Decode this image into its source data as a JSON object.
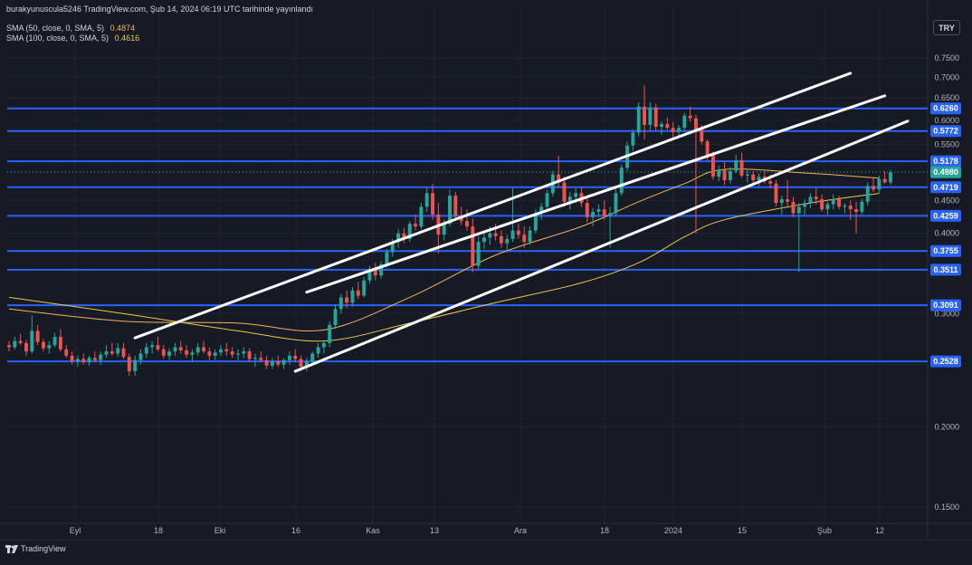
{
  "header": {
    "published_by": "burakyunuscula5246 TradingView.com, Şub 14, 2024 06:19 UTC tarihinde yayınlandı",
    "sma50_label": "SMA (50, close, 0, SMA, 5)",
    "sma50_value": "0.4874",
    "sma100_label": "SMA (100, close, 0, SMA, 5)",
    "sma100_value": "0.4616"
  },
  "currency_button": "TRY",
  "brand": {
    "logo_text": "TradingView",
    "icon": "tradingview-logo-icon"
  },
  "colors": {
    "background": "#161a25",
    "grid": "#1f2430",
    "up": "#26a69a",
    "down": "#ef5350",
    "hline": "#2962ff",
    "trendline": "#ffffff",
    "sma50": "#f0b35a",
    "sma100": "#e8c94a",
    "axis_text": "#b2b5be"
  },
  "chart_data": {
    "type": "candlestick",
    "y_scale": "log",
    "y_ticks": [
      "0.7500",
      "0.7000",
      "0.6500",
      "0.6000",
      "0.5500",
      "0.5000",
      "0.4500",
      "0.4000",
      "0.3500",
      "0.3000",
      "0.2500",
      "0.2000",
      "0.1500"
    ],
    "x_ticks": [
      "Eyl",
      "18",
      "Eki",
      "16",
      "Kas",
      "13",
      "Ara",
      "18",
      "2024",
      "15",
      "Şub",
      "12"
    ],
    "horizontal_levels": [
      "0.6260",
      "0.5772",
      "0.5178",
      "0.4719",
      "0.4259",
      "0.3755",
      "0.3511",
      "0.3091",
      "0.2528"
    ],
    "last_price": "0.4980",
    "candles": [
      [
        0.268,
        0.272,
        0.262,
        0.266
      ],
      [
        0.266,
        0.276,
        0.264,
        0.272
      ],
      [
        0.272,
        0.279,
        0.268,
        0.27
      ],
      [
        0.27,
        0.273,
        0.258,
        0.262
      ],
      [
        0.262,
        0.298,
        0.26,
        0.282
      ],
      [
        0.282,
        0.288,
        0.268,
        0.271
      ],
      [
        0.271,
        0.274,
        0.262,
        0.265
      ],
      [
        0.265,
        0.272,
        0.26,
        0.268
      ],
      [
        0.268,
        0.28,
        0.266,
        0.276
      ],
      [
        0.276,
        0.284,
        0.262,
        0.264
      ],
      [
        0.264,
        0.268,
        0.256,
        0.258
      ],
      [
        0.258,
        0.262,
        0.25,
        0.253
      ],
      [
        0.253,
        0.258,
        0.248,
        0.255
      ],
      [
        0.255,
        0.26,
        0.25,
        0.252
      ],
      [
        0.252,
        0.258,
        0.249,
        0.256
      ],
      [
        0.256,
        0.262,
        0.252,
        0.254
      ],
      [
        0.254,
        0.262,
        0.25,
        0.259
      ],
      [
        0.259,
        0.268,
        0.256,
        0.262
      ],
      [
        0.262,
        0.27,
        0.258,
        0.26
      ],
      [
        0.26,
        0.27,
        0.257,
        0.265
      ],
      [
        0.265,
        0.27,
        0.255,
        0.257
      ],
      [
        0.257,
        0.26,
        0.24,
        0.244
      ],
      [
        0.244,
        0.258,
        0.24,
        0.254
      ],
      [
        0.254,
        0.264,
        0.25,
        0.26
      ],
      [
        0.26,
        0.27,
        0.256,
        0.266
      ],
      [
        0.266,
        0.272,
        0.26,
        0.268
      ],
      [
        0.268,
        0.276,
        0.262,
        0.264
      ],
      [
        0.264,
        0.268,
        0.255,
        0.258
      ],
      [
        0.258,
        0.265,
        0.254,
        0.262
      ],
      [
        0.262,
        0.27,
        0.258,
        0.266
      ],
      [
        0.266,
        0.272,
        0.26,
        0.263
      ],
      [
        0.263,
        0.268,
        0.256,
        0.259
      ],
      [
        0.259,
        0.264,
        0.252,
        0.261
      ],
      [
        0.261,
        0.27,
        0.258,
        0.266
      ],
      [
        0.266,
        0.272,
        0.26,
        0.262
      ],
      [
        0.262,
        0.266,
        0.254,
        0.258
      ],
      [
        0.258,
        0.264,
        0.254,
        0.261
      ],
      [
        0.261,
        0.268,
        0.258,
        0.264
      ],
      [
        0.264,
        0.27,
        0.258,
        0.262
      ],
      [
        0.262,
        0.266,
        0.256,
        0.259
      ],
      [
        0.259,
        0.264,
        0.254,
        0.26
      ],
      [
        0.26,
        0.266,
        0.256,
        0.262
      ],
      [
        0.262,
        0.265,
        0.252,
        0.255
      ],
      [
        0.255,
        0.26,
        0.248,
        0.256
      ],
      [
        0.256,
        0.262,
        0.252,
        0.254
      ],
      [
        0.254,
        0.258,
        0.246,
        0.249
      ],
      [
        0.249,
        0.256,
        0.246,
        0.253
      ],
      [
        0.253,
        0.258,
        0.248,
        0.25
      ],
      [
        0.25,
        0.256,
        0.246,
        0.254
      ],
      [
        0.254,
        0.262,
        0.25,
        0.258
      ],
      [
        0.258,
        0.264,
        0.252,
        0.255
      ],
      [
        0.255,
        0.258,
        0.244,
        0.248
      ],
      [
        0.248,
        0.256,
        0.244,
        0.253
      ],
      [
        0.253,
        0.262,
        0.25,
        0.26
      ],
      [
        0.26,
        0.27,
        0.256,
        0.266
      ],
      [
        0.266,
        0.272,
        0.26,
        0.27
      ],
      [
        0.27,
        0.292,
        0.266,
        0.288
      ],
      [
        0.288,
        0.31,
        0.284,
        0.305
      ],
      [
        0.305,
        0.322,
        0.3,
        0.318
      ],
      [
        0.318,
        0.326,
        0.306,
        0.312
      ],
      [
        0.312,
        0.33,
        0.308,
        0.326
      ],
      [
        0.326,
        0.336,
        0.316,
        0.32
      ],
      [
        0.32,
        0.342,
        0.318,
        0.338
      ],
      [
        0.338,
        0.356,
        0.334,
        0.352
      ],
      [
        0.352,
        0.36,
        0.338,
        0.344
      ],
      [
        0.344,
        0.362,
        0.34,
        0.358
      ],
      [
        0.358,
        0.378,
        0.354,
        0.374
      ],
      [
        0.374,
        0.392,
        0.368,
        0.388
      ],
      [
        0.388,
        0.406,
        0.38,
        0.4
      ],
      [
        0.4,
        0.408,
        0.386,
        0.392
      ],
      [
        0.392,
        0.418,
        0.388,
        0.414
      ],
      [
        0.414,
        0.428,
        0.404,
        0.41
      ],
      [
        0.41,
        0.446,
        0.406,
        0.44
      ],
      [
        0.44,
        0.47,
        0.432,
        0.462
      ],
      [
        0.462,
        0.478,
        0.42,
        0.428
      ],
      [
        0.428,
        0.446,
        0.372,
        0.398
      ],
      [
        0.398,
        0.42,
        0.39,
        0.414
      ],
      [
        0.414,
        0.468,
        0.41,
        0.458
      ],
      [
        0.458,
        0.464,
        0.42,
        0.426
      ],
      [
        0.426,
        0.44,
        0.412,
        0.418
      ],
      [
        0.418,
        0.436,
        0.404,
        0.41
      ],
      [
        0.41,
        0.422,
        0.348,
        0.356
      ],
      [
        0.356,
        0.396,
        0.352,
        0.388
      ],
      [
        0.388,
        0.402,
        0.378,
        0.394
      ],
      [
        0.394,
        0.41,
        0.384,
        0.4
      ],
      [
        0.4,
        0.414,
        0.39,
        0.396
      ],
      [
        0.396,
        0.404,
        0.38,
        0.386
      ],
      [
        0.386,
        0.398,
        0.374,
        0.392
      ],
      [
        0.392,
        0.47,
        0.388,
        0.404
      ],
      [
        0.404,
        0.414,
        0.392,
        0.398
      ],
      [
        0.398,
        0.41,
        0.38,
        0.388
      ],
      [
        0.388,
        0.41,
        0.384,
        0.404
      ],
      [
        0.404,
        0.436,
        0.4,
        0.43
      ],
      [
        0.43,
        0.446,
        0.42,
        0.44
      ],
      [
        0.44,
        0.468,
        0.436,
        0.462
      ],
      [
        0.462,
        0.5,
        0.456,
        0.494
      ],
      [
        0.494,
        0.528,
        0.472,
        0.48
      ],
      [
        0.48,
        0.49,
        0.44,
        0.448
      ],
      [
        0.448,
        0.464,
        0.436,
        0.456
      ],
      [
        0.456,
        0.47,
        0.446,
        0.462
      ],
      [
        0.462,
        0.472,
        0.44,
        0.446
      ],
      [
        0.446,
        0.454,
        0.416,
        0.424
      ],
      [
        0.424,
        0.438,
        0.41,
        0.432
      ],
      [
        0.432,
        0.444,
        0.424,
        0.436
      ],
      [
        0.436,
        0.45,
        0.42,
        0.426
      ],
      [
        0.426,
        0.44,
        0.38,
        0.43
      ],
      [
        0.43,
        0.47,
        0.426,
        0.462
      ],
      [
        0.462,
        0.512,
        0.458,
        0.506
      ],
      [
        0.506,
        0.556,
        0.5,
        0.548
      ],
      [
        0.548,
        0.58,
        0.538,
        0.574
      ],
      [
        0.574,
        0.64,
        0.566,
        0.63
      ],
      [
        0.63,
        0.68,
        0.56,
        0.59
      ],
      [
        0.59,
        0.64,
        0.576,
        0.628
      ],
      [
        0.628,
        0.636,
        0.578,
        0.586
      ],
      [
        0.586,
        0.598,
        0.57,
        0.592
      ],
      [
        0.592,
        0.606,
        0.58,
        0.584
      ],
      [
        0.584,
        0.596,
        0.56,
        0.575
      ],
      [
        0.575,
        0.59,
        0.568,
        0.584
      ],
      [
        0.584,
        0.616,
        0.578,
        0.61
      ],
      [
        0.61,
        0.63,
        0.596,
        0.604
      ],
      [
        0.604,
        0.612,
        0.4,
        0.58
      ],
      [
        0.58,
        0.59,
        0.55,
        0.556
      ],
      [
        0.556,
        0.56,
        0.52,
        0.53
      ],
      [
        0.53,
        0.536,
        0.484,
        0.49
      ],
      [
        0.49,
        0.51,
        0.482,
        0.502
      ],
      [
        0.502,
        0.516,
        0.476,
        0.484
      ],
      [
        0.484,
        0.508,
        0.478,
        0.5
      ],
      [
        0.5,
        0.53,
        0.496,
        0.52
      ],
      [
        0.52,
        0.534,
        0.488,
        0.492
      ],
      [
        0.492,
        0.504,
        0.48,
        0.494
      ],
      [
        0.494,
        0.5,
        0.478,
        0.484
      ],
      [
        0.484,
        0.496,
        0.474,
        0.49
      ],
      [
        0.49,
        0.5,
        0.478,
        0.482
      ],
      [
        0.482,
        0.494,
        0.47,
        0.478
      ],
      [
        0.478,
        0.484,
        0.44,
        0.446
      ],
      [
        0.446,
        0.458,
        0.428,
        0.452
      ],
      [
        0.452,
        0.484,
        0.44,
        0.448
      ],
      [
        0.448,
        0.456,
        0.424,
        0.43
      ],
      [
        0.43,
        0.446,
        0.348,
        0.44
      ],
      [
        0.44,
        0.452,
        0.428,
        0.446
      ],
      [
        0.446,
        0.462,
        0.438,
        0.456
      ],
      [
        0.456,
        0.47,
        0.444,
        0.452
      ],
      [
        0.452,
        0.46,
        0.432,
        0.436
      ],
      [
        0.436,
        0.448,
        0.428,
        0.444
      ],
      [
        0.444,
        0.46,
        0.436,
        0.452
      ],
      [
        0.452,
        0.458,
        0.436,
        0.44
      ],
      [
        0.44,
        0.446,
        0.43,
        0.442
      ],
      [
        0.442,
        0.45,
        0.42,
        0.436
      ],
      [
        0.436,
        0.448,
        0.4,
        0.432
      ],
      [
        0.432,
        0.452,
        0.428,
        0.448
      ],
      [
        0.448,
        0.48,
        0.442,
        0.474
      ],
      [
        0.474,
        0.49,
        0.464,
        0.468
      ],
      [
        0.468,
        0.492,
        0.462,
        0.486
      ],
      [
        0.486,
        0.5,
        0.478,
        0.48
      ],
      [
        0.48,
        0.502,
        0.476,
        0.498
      ]
    ],
    "sma50": {
      "x": [
        0,
        20,
        40,
        55,
        70,
        85,
        100,
        110,
        118,
        125,
        140,
        152
      ],
      "y": [
        0.305,
        0.292,
        0.29,
        0.283,
        0.318,
        0.37,
        0.41,
        0.448,
        0.478,
        0.503,
        0.496,
        0.4874
      ]
    },
    "sma100": {
      "x": [
        0,
        20,
        40,
        55,
        70,
        85,
        100,
        110,
        118,
        125,
        140,
        152
      ],
      "y": [
        0.318,
        0.3,
        0.282,
        0.272,
        0.29,
        0.312,
        0.335,
        0.36,
        0.395,
        0.42,
        0.446,
        0.4616
      ]
    },
    "trendlines": [
      {
        "from": {
          "x": 22,
          "y": 0.275
        },
        "to": {
          "x": 147,
          "y": 0.71
        }
      },
      {
        "from": {
          "x": 52,
          "y": 0.324
        },
        "to": {
          "x": 153,
          "y": 0.655
        }
      },
      {
        "from": {
          "x": 50,
          "y": 0.244
        },
        "to": {
          "x": 157,
          "y": 0.598
        }
      }
    ]
  }
}
